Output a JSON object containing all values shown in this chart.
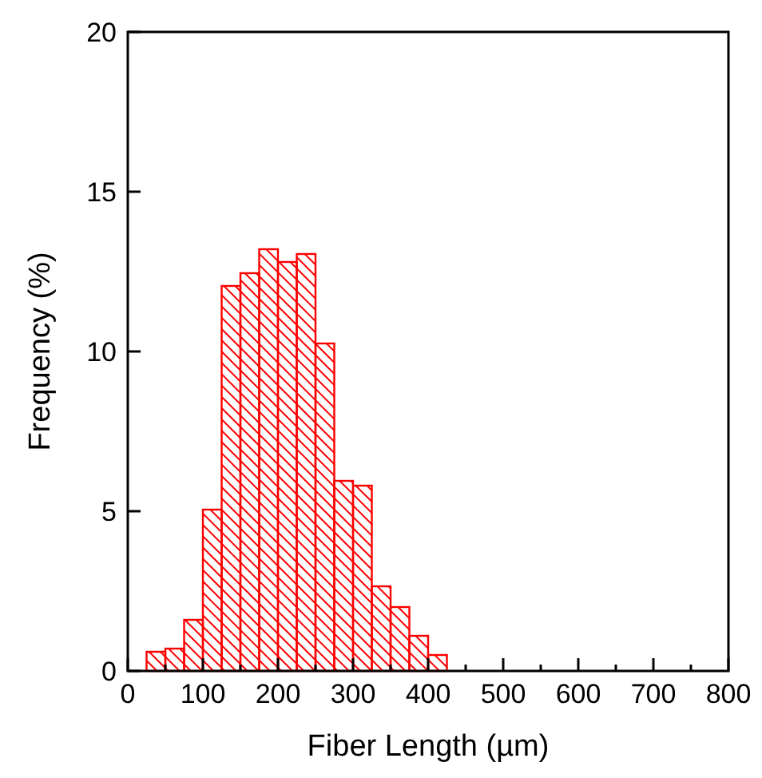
{
  "chart_data": {
    "type": "histogram",
    "xlabel": "Fiber Length  (µm)",
    "ylabel": "Frequency (%)",
    "color": "#ff0000",
    "bins": [
      25,
      50,
      75,
      100,
      125,
      150,
      175,
      200,
      225,
      250,
      275,
      300,
      325,
      350,
      375,
      400,
      425
    ],
    "values": [
      0.6,
      0.7,
      1.6,
      5.05,
      12.05,
      12.45,
      13.2,
      12.8,
      13.05,
      10.25,
      5.95,
      5.8,
      2.65,
      2.0,
      1.1,
      0.5
    ],
    "xlim": [
      0,
      800
    ],
    "xticks": [
      0,
      100,
      200,
      300,
      400,
      500,
      600,
      700,
      800
    ],
    "ylim": [
      0,
      20
    ],
    "yticks": [
      0,
      5,
      10,
      15,
      20
    ],
    "grid": false
  }
}
